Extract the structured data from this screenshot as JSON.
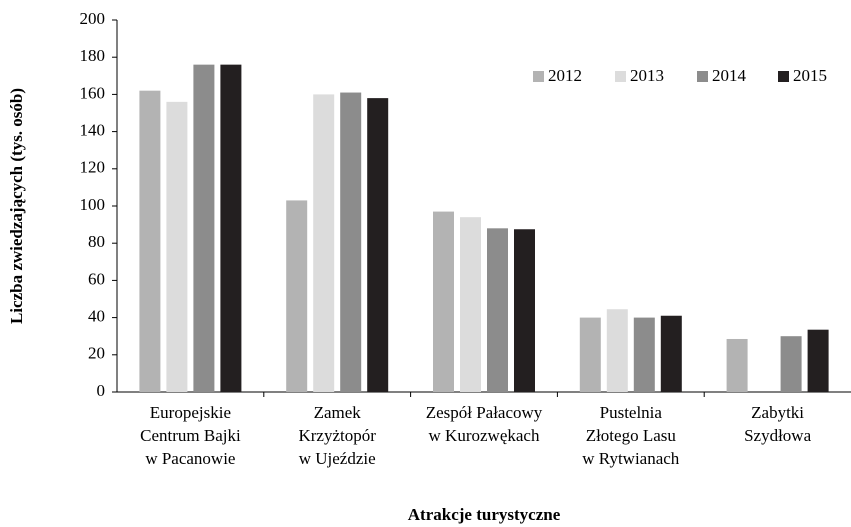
{
  "chart_data": {
    "type": "bar",
    "x_label": "Atrakcje turystyczne",
    "y_label": "Liczba zwiedzających (tys. osób)",
    "categories": [
      [
        "Europejskie",
        "Centrum Bajki",
        "w Pacanowie"
      ],
      [
        "Zamek",
        "Krzyżtopór",
        "w Ujeździe"
      ],
      [
        "Zespół Pałacowy",
        "w Kurozwękach"
      ],
      [
        "Pustelnia",
        "Złotego Lasu",
        "w Rytwianach"
      ],
      [
        "Zabytki",
        "Szydłowa"
      ]
    ],
    "series": [
      {
        "name": "2012",
        "color": "#b3b3b3",
        "values": [
          162,
          103,
          97,
          40,
          28.5
        ]
      },
      {
        "name": "2013",
        "color": "#dcdcdc",
        "values": [
          156,
          160,
          94,
          44.5,
          null
        ]
      },
      {
        "name": "2014",
        "color": "#8c8c8c",
        "values": [
          176,
          161,
          88,
          40,
          30
        ]
      },
      {
        "name": "2015",
        "color": "#231f20",
        "values": [
          176,
          158,
          87.5,
          41,
          33.5
        ]
      }
    ],
    "ylim": [
      0,
      200
    ],
    "yticks": [
      0,
      20,
      40,
      60,
      80,
      100,
      120,
      140,
      160,
      180,
      200
    ],
    "grid": false,
    "legend": "top-right"
  }
}
